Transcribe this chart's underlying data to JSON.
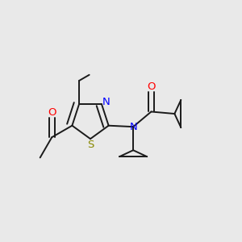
{
  "bg_color": "#e9e9e9",
  "bond_color": "#1a1a1a",
  "atom_colors": {
    "N": "#0000ff",
    "S": "#888800",
    "O": "#ff0000",
    "C": "#1a1a1a"
  },
  "lw": 1.4,
  "figsize": [
    3.0,
    3.0
  ],
  "dpi": 100
}
